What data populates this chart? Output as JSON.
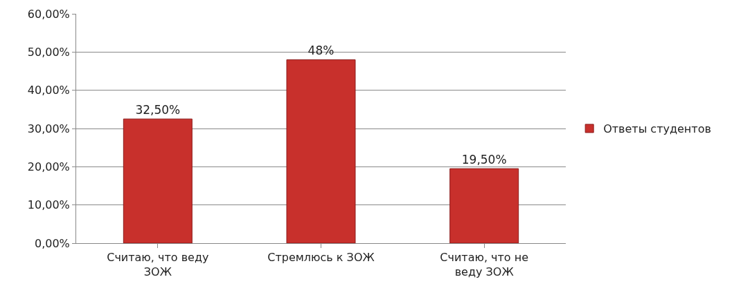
{
  "chart_data": {
    "type": "bar",
    "categories": [
      "Считаю, что веду ЗОЖ",
      "Стремлюсь к ЗОЖ",
      "Считаю, что не веду ЗОЖ"
    ],
    "series": [
      {
        "name": "Ответы студентов",
        "color": "#c8302c",
        "values": [
          32.5,
          48,
          19.5
        ],
        "value_labels": [
          "32,50%",
          "48%",
          "19,50%"
        ]
      }
    ],
    "ylim": [
      0,
      60
    ],
    "yticks": [
      {
        "value": 0,
        "label": "0,00%"
      },
      {
        "value": 10,
        "label": "10,00%"
      },
      {
        "value": 20,
        "label": "20,00%"
      },
      {
        "value": 30,
        "label": "30,00%"
      },
      {
        "value": 40,
        "label": "40,00%"
      },
      {
        "value": 50,
        "label": "50,00%"
      },
      {
        "value": 60,
        "label": "60,00%"
      }
    ],
    "grid": "y",
    "legend": "right"
  }
}
